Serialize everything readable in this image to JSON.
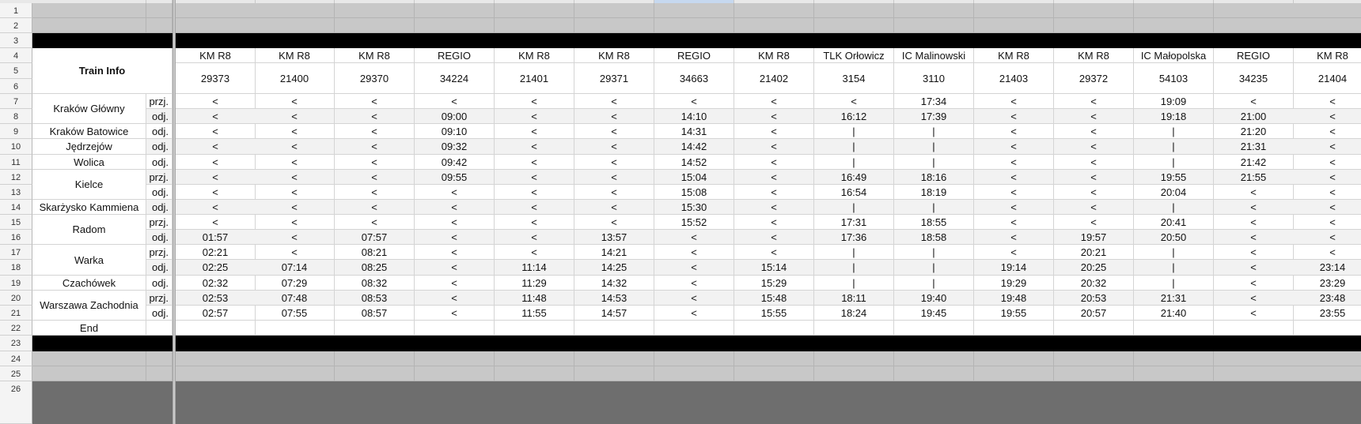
{
  "spreadsheet": {
    "row_labels": [
      "1",
      "2",
      "3",
      "4",
      "5",
      "6",
      "7",
      "8",
      "9",
      "10",
      "11",
      "12",
      "13",
      "14",
      "15",
      "16",
      "17",
      "18",
      "19",
      "20",
      "21",
      "22",
      "23",
      "24",
      "25",
      "26"
    ],
    "train_info_label": "Train Info",
    "end_label": "End",
    "trains": [
      {
        "type": "KM R8",
        "number": "29373"
      },
      {
        "type": "KM R8",
        "number": "21400"
      },
      {
        "type": "KM R8",
        "number": "29370"
      },
      {
        "type": "REGIO",
        "number": "34224"
      },
      {
        "type": "KM R8",
        "number": "21401"
      },
      {
        "type": "KM R8",
        "number": "29371"
      },
      {
        "type": "REGIO",
        "number": "34663"
      },
      {
        "type": "KM R8",
        "number": "21402"
      },
      {
        "type": "TLK Orłowicz",
        "number": "3154"
      },
      {
        "type": "IC Malinowski",
        "number": "3110"
      },
      {
        "type": "KM R8",
        "number": "21403"
      },
      {
        "type": "KM R8",
        "number": "29372"
      },
      {
        "type": "IC Małopolska",
        "number": "54103"
      },
      {
        "type": "REGIO",
        "number": "34235"
      },
      {
        "type": "KM R8",
        "number": "21404"
      }
    ],
    "stations": [
      {
        "name": "Kraków Główny",
        "rows": [
          {
            "kind": "przj.",
            "times": [
              "<",
              "<",
              "<",
              "<",
              "<",
              "<",
              "<",
              "<",
              "<",
              "17:34",
              "<",
              "<",
              "19:09",
              "<",
              "<"
            ]
          },
          {
            "kind": "odj.",
            "times": [
              "<",
              "<",
              "<",
              "09:00",
              "<",
              "<",
              "14:10",
              "<",
              "16:12",
              "17:39",
              "<",
              "<",
              "19:18",
              "21:00",
              "<"
            ]
          }
        ]
      },
      {
        "name": "Kraków Batowice",
        "rows": [
          {
            "kind": "odj.",
            "times": [
              "<",
              "<",
              "<",
              "09:10",
              "<",
              "<",
              "14:31",
              "<",
              "|",
              "|",
              "<",
              "<",
              "|",
              "21:20",
              "<"
            ]
          }
        ]
      },
      {
        "name": "Jędrzejów",
        "rows": [
          {
            "kind": "odj.",
            "times": [
              "<",
              "<",
              "<",
              "09:32",
              "<",
              "<",
              "14:42",
              "<",
              "|",
              "|",
              "<",
              "<",
              "|",
              "21:31",
              "<"
            ]
          }
        ]
      },
      {
        "name": "Wolica",
        "rows": [
          {
            "kind": "odj.",
            "times": [
              "<",
              "<",
              "<",
              "09:42",
              "<",
              "<",
              "14:52",
              "<",
              "|",
              "|",
              "<",
              "<",
              "|",
              "21:42",
              "<"
            ]
          }
        ]
      },
      {
        "name": "Kielce",
        "rows": [
          {
            "kind": "przj.",
            "times": [
              "<",
              "<",
              "<",
              "09:55",
              "<",
              "<",
              "15:04",
              "<",
              "16:49",
              "18:16",
              "<",
              "<",
              "19:55",
              "21:55",
              "<"
            ]
          },
          {
            "kind": "odj.",
            "times": [
              "<",
              "<",
              "<",
              "<",
              "<",
              "<",
              "15:08",
              "<",
              "16:54",
              "18:19",
              "<",
              "<",
              "20:04",
              "<",
              "<"
            ]
          }
        ]
      },
      {
        "name": "Skarżysko Kammiena",
        "rows": [
          {
            "kind": "odj.",
            "times": [
              "<",
              "<",
              "<",
              "<",
              "<",
              "<",
              "15:30",
              "<",
              "|",
              "|",
              "<",
              "<",
              "|",
              "<",
              "<"
            ]
          }
        ]
      },
      {
        "name": "Radom",
        "rows": [
          {
            "kind": "przj.",
            "times": [
              "<",
              "<",
              "<",
              "<",
              "<",
              "<",
              "15:52",
              "<",
              "17:31",
              "18:55",
              "<",
              "<",
              "20:41",
              "<",
              "<"
            ]
          },
          {
            "kind": "odj.",
            "times": [
              "01:57",
              "<",
              "07:57",
              "<",
              "<",
              "13:57",
              "<",
              "<",
              "17:36",
              "18:58",
              "<",
              "19:57",
              "20:50",
              "<",
              "<"
            ]
          }
        ]
      },
      {
        "name": "Warka",
        "rows": [
          {
            "kind": "przj.",
            "times": [
              "02:21",
              "<",
              "08:21",
              "<",
              "<",
              "14:21",
              "<",
              "<",
              "|",
              "|",
              "<",
              "20:21",
              "|",
              "<",
              "<"
            ]
          },
          {
            "kind": "odj.",
            "times": [
              "02:25",
              "07:14",
              "08:25",
              "<",
              "11:14",
              "14:25",
              "<",
              "15:14",
              "|",
              "|",
              "19:14",
              "20:25",
              "|",
              "<",
              "23:14"
            ]
          }
        ]
      },
      {
        "name": "Czachówek",
        "rows": [
          {
            "kind": "odj.",
            "times": [
              "02:32",
              "07:29",
              "08:32",
              "<",
              "11:29",
              "14:32",
              "<",
              "15:29",
              "|",
              "|",
              "19:29",
              "20:32",
              "|",
              "<",
              "23:29"
            ]
          }
        ]
      },
      {
        "name": "Warszawa Zachodnia",
        "rows": [
          {
            "kind": "przj.",
            "times": [
              "02:53",
              "07:48",
              "08:53",
              "<",
              "11:48",
              "14:53",
              "<",
              "15:48",
              "18:11",
              "19:40",
              "19:48",
              "20:53",
              "21:31",
              "<",
              "23:48"
            ]
          },
          {
            "kind": "odj.",
            "times": [
              "02:57",
              "07:55",
              "08:57",
              "<",
              "11:55",
              "14:57",
              "<",
              "15:55",
              "18:24",
              "19:45",
              "19:55",
              "20:57",
              "21:40",
              "<",
              "23:55"
            ]
          }
        ]
      }
    ]
  }
}
